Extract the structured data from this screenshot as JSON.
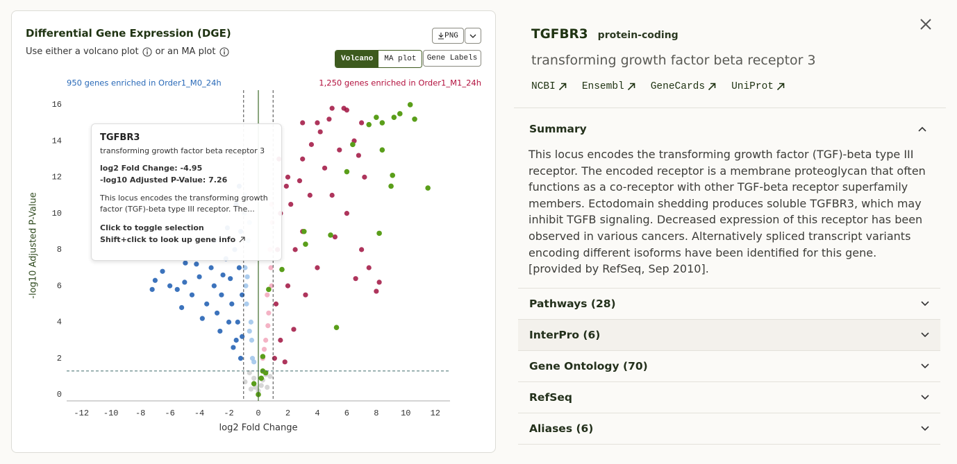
{
  "header": {
    "title": "Differential Gene Expression (DGE)",
    "subtitle": [
      "Use either a volcano plot",
      "or an MA plot"
    ],
    "buttons": {
      "png": "PNG",
      "volcano": "Volcano",
      "ma": "MA plot",
      "gene_labels": "Gene Labels"
    }
  },
  "chart_data": {
    "type": "scatter",
    "x_label": "log2 Fold Change",
    "y_label": "-log10 Adjusted P-Value",
    "annotations": [
      {
        "text": "950 genes enriched in Order1_M0_24h",
        "color": "#2a6ab8"
      },
      {
        "text": "1,250 genes enriched in Order1_M1_24h",
        "color": "#b3123f"
      }
    ],
    "xlim": [
      -13,
      13
    ],
    "ylim": [
      -0.35,
      16.8
    ],
    "xticks": [
      -12,
      -10,
      -8,
      -6,
      -4,
      -2,
      0,
      2,
      4,
      6,
      8,
      10,
      12
    ],
    "yticks": [
      0,
      2,
      4,
      6,
      8,
      10,
      12,
      14,
      16
    ],
    "fc_threshold": [
      -1,
      1
    ],
    "p_threshold": 1.3,
    "series": [
      {
        "color": "#cfcfcf",
        "x": [
          0,
          0.3,
          -0.3,
          0.5,
          -0.6,
          0.2,
          -0.2,
          0.8,
          -0.9,
          0.6,
          -0.5
        ],
        "values": [
          0.2,
          0.8,
          0.9,
          1.1,
          1.2,
          0.5,
          0.4,
          1.0,
          0.7,
          0.4,
          0.3
        ]
      },
      {
        "color": "#9cc3ea",
        "x": [
          -0.4,
          -0.6,
          -0.8,
          -0.9,
          -0.5,
          -0.7,
          -0.95,
          -0.85,
          -0.3,
          -0.6,
          -0.9,
          -0.75,
          -0.45
        ],
        "values": [
          2,
          3.5,
          5,
          7,
          4,
          8.5,
          10,
          6,
          1.8,
          9.5,
          11,
          6.5,
          3
        ]
      },
      {
        "color": "#f2a6bb",
        "x": [
          0.3,
          0.5,
          0.7,
          0.9,
          0.6,
          0.8,
          0.95,
          0.4,
          0.85,
          0.9,
          0.65
        ],
        "values": [
          2,
          3,
          4.5,
          6,
          5.5,
          8,
          9.5,
          2.5,
          7,
          10.5,
          3.8
        ]
      },
      {
        "color": "#1a5bb0",
        "x": [
          -1.2,
          -1.5,
          -2,
          -1.8,
          -2.5,
          -3,
          -1.3,
          -2.2,
          -3.5,
          -4,
          -4.5,
          -5,
          -5.5,
          -6,
          -7.2,
          -7,
          -1.6,
          -1.2,
          -2.8,
          -1.4,
          -3.2,
          -2.4,
          -1.1,
          -1.9,
          -4.2,
          -3.8,
          -2.6,
          -1.7,
          -1.1,
          -2.1,
          -1.5,
          -1.3,
          -5.2,
          -6.5,
          -3,
          -4.95
        ],
        "values": [
          2,
          3,
          4,
          5,
          5.5,
          6,
          7,
          7.5,
          5,
          6.5,
          5.5,
          6.2,
          5.8,
          6,
          5.8,
          6.3,
          8,
          9,
          4.5,
          4,
          7,
          6.6,
          5.5,
          6.4,
          7.2,
          4.2,
          3.5,
          2.6,
          3.2,
          9.2,
          10.5,
          11.5,
          4.8,
          6.8,
          8.5,
          7.26
        ]
      },
      {
        "color": "#a0123f",
        "x": [
          5,
          6,
          4,
          3,
          7,
          2,
          1.5,
          1.2,
          1.5,
          2,
          2.5,
          3,
          3.5,
          4.5,
          5.5,
          6.5,
          1.1,
          1.3,
          2.2,
          2.8,
          3.6,
          4.2,
          5,
          6,
          7,
          7.5,
          8,
          6.6,
          7.2,
          8.2,
          4,
          5.2,
          3.2,
          2.4,
          1.8,
          5.8,
          4.8,
          6.8,
          1.4,
          1.9,
          3
        ],
        "values": [
          15.8,
          15.7,
          15,
          13,
          15,
          12,
          10,
          5,
          3,
          6,
          8,
          9,
          11,
          12.5,
          13.5,
          14,
          2,
          8,
          10.5,
          11.8,
          13.8,
          14.5,
          11,
          10,
          8,
          7,
          5.7,
          6.4,
          12,
          6.2,
          7,
          8.7,
          5.5,
          3.6,
          1.8,
          15.8,
          15.2,
          13.2,
          13,
          11.5,
          15
        ]
      },
      {
        "color": "#5a9e1a",
        "x": [
          8,
          8.4,
          9.2,
          10.3,
          10.6,
          9.6,
          7.5,
          6.4,
          8.4,
          9.1,
          11.5,
          9,
          6,
          3.1,
          4.9,
          8.2,
          3.2,
          1.6,
          0.7,
          5.3,
          0.3,
          0.3,
          0.5,
          0.2,
          -0.3,
          0
        ],
        "values": [
          15.3,
          15,
          15.3,
          16,
          15.2,
          15.5,
          14.9,
          13.8,
          13.5,
          12.1,
          11.4,
          11.5,
          12.3,
          9,
          8.8,
          8.9,
          8.3,
          6.9,
          5.8,
          3.7,
          2.1,
          1.3,
          1.2,
          0.9,
          0.6,
          0
        ]
      }
    ]
  },
  "tooltip": {
    "gene": "TGFBR3",
    "name": "transforming growth factor beta receptor 3",
    "fold_change": {
      "label": "log2 Fold Change:",
      "value": -4.95
    },
    "p_value": {
      "label": "-log10 Adjusted P-Value:",
      "value": 7.26
    },
    "summary": "This locus encodes the transforming growth factor (TGF)-beta type III receptor. The...",
    "hints": [
      "Click to toggle selection",
      "Shift+click to look up gene info"
    ]
  },
  "gene_panel": {
    "symbol": "TGFBR3",
    "biotype": "protein-coding",
    "name": "transforming growth factor beta receptor 3",
    "links": [
      "NCBI",
      "Ensembl",
      "GeneCards",
      "UniProt"
    ],
    "summary": {
      "title": "Summary",
      "text": "This locus encodes the transforming growth factor (TGF)-beta type III receptor. The encoded receptor is a membrane proteoglycan that often functions as a co-receptor with other TGF-beta receptor superfamily members. Ectodomain shedding produces soluble TGFBR3, which may inhibit TGFB signaling. Decreased expression of this receptor has been observed in various cancers. Alternatively spliced transcript variants encoding different isoforms have been identified for this gene.[provided by RefSeq, Sep 2010]."
    },
    "sections": [
      "Pathways (28)",
      "InterPro (6)",
      "Gene Ontology (70)",
      "RefSeq",
      "Aliases (6)"
    ]
  }
}
